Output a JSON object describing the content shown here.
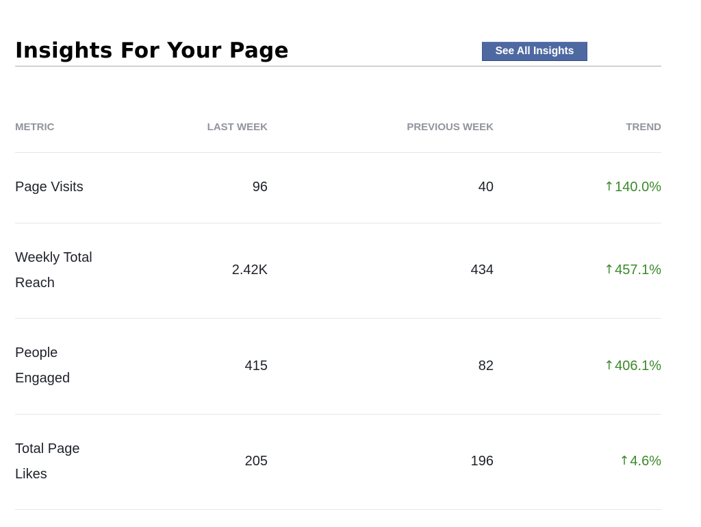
{
  "page": {
    "title": "Insights For Your Page",
    "see_all_label": "See All Insights"
  },
  "table": {
    "headers": {
      "metric": "METRIC",
      "last_week": "LAST WEEK",
      "previous_week": "PREVIOUS WEEK",
      "trend": "TREND"
    },
    "rows": [
      {
        "metric": "Page Visits",
        "last_week": "96",
        "previous_week": "40",
        "trend_arrow": "↑",
        "trend": "140.0%"
      },
      {
        "metric": "Weekly Total Reach",
        "last_week": "2.42K",
        "previous_week": "434",
        "trend_arrow": "↑",
        "trend": "457.1%"
      },
      {
        "metric": "People Engaged",
        "last_week": "415",
        "previous_week": "82",
        "trend_arrow": "↑",
        "trend": "406.1%"
      },
      {
        "metric": "Total Page Likes",
        "last_week": "205",
        "previous_week": "196",
        "trend_arrow": "↑",
        "trend": "4.6%"
      }
    ]
  },
  "colors": {
    "button_bg": "#4e69a2",
    "trend_up": "#3a8a2a",
    "header_text": "#90949c",
    "divider": "#e5e6e9"
  },
  "icons": {
    "trend_up": "arrow-up-icon"
  }
}
